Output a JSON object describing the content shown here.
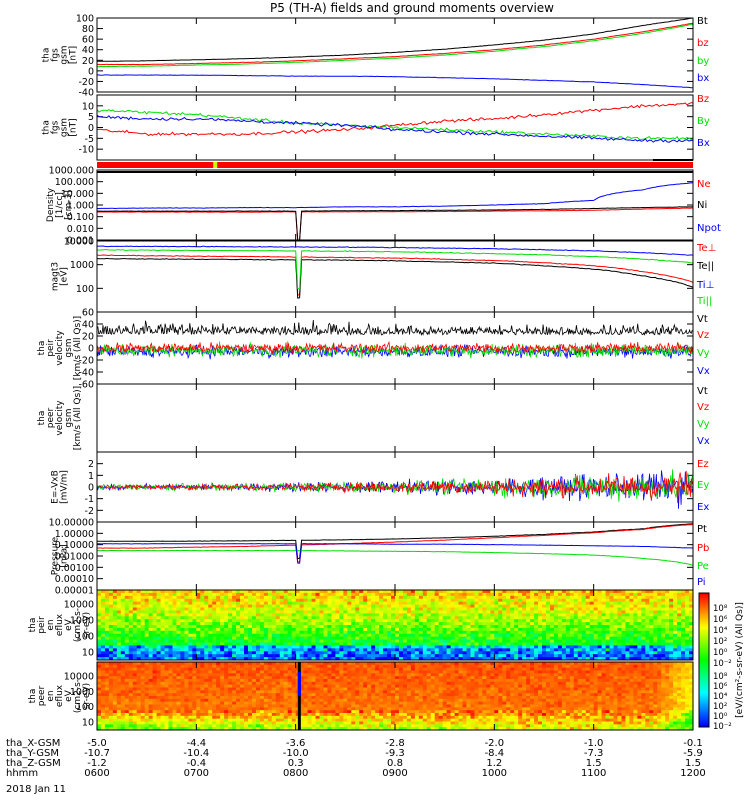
{
  "title": "P5 (TH-A) fields and ground moments overview",
  "date_label": "2018 Jan 11",
  "colors": {
    "black": "#000000",
    "red": "#ff0000",
    "green": "#00e000",
    "blue": "#0000ff",
    "quality_bar": "#ff0000",
    "quality_mark": "#c8ff00"
  },
  "bottom_axis": {
    "row_labels": [
      "tha_X-GSM",
      "tha_Y-GSM",
      "tha_Z-GSM",
      "hhmm"
    ],
    "x_gsm": [
      "-5.0",
      "-4.4",
      "-3.6",
      "-2.8",
      "-2.0",
      "-1.0",
      "-0.1"
    ],
    "y_gsm": [
      "-10.7",
      "-10.4",
      "-10.0",
      "-9.3",
      "-8.4",
      "-7.3",
      "-5.9"
    ],
    "z_gsm": [
      "-1.2",
      "-0.4",
      "0.3",
      "0.8",
      "1.2",
      "1.5",
      "1.5"
    ],
    "hhmm": [
      "0600",
      "0700",
      "0800",
      "0900",
      "1000",
      "1100",
      "1200"
    ]
  },
  "chart_data": [
    {
      "type": "line",
      "ylabel": [
        "tha",
        "fgs",
        "gsm",
        "[nT]"
      ],
      "ylim": [
        -40,
        100
      ],
      "ytick_labels": [
        "100",
        "80",
        "60",
        "40",
        "20",
        "0",
        "-20",
        "-40"
      ],
      "x": [
        "0600",
        "0630",
        "0700",
        "0730",
        "0800",
        "0830",
        "0900",
        "0930",
        "1000",
        "1030",
        "1100",
        "1130",
        "1200"
      ],
      "series": [
        {
          "name": "Bt",
          "color": "#000000",
          "values": [
            18,
            19,
            21,
            23,
            26,
            30,
            35,
            41,
            49,
            58,
            70,
            86,
            100
          ]
        },
        {
          "name": "bz",
          "color": "#ff0000",
          "values": [
            12,
            12,
            14,
            16,
            19,
            23,
            27,
            33,
            40,
            49,
            60,
            74,
            90
          ]
        },
        {
          "name": "by",
          "color": "#00e000",
          "values": [
            8,
            9,
            11,
            13,
            16,
            20,
            24,
            30,
            37,
            46,
            57,
            71,
            88
          ]
        },
        {
          "name": "bx",
          "color": "#0000ff",
          "values": [
            -8,
            -8,
            -8,
            -9,
            -10,
            -10,
            -11,
            -13,
            -15,
            -18,
            -21,
            -26,
            -32
          ]
        }
      ]
    },
    {
      "type": "line",
      "ylabel": [
        "tha",
        "fgs",
        "gsm",
        "[nT]"
      ],
      "ylim": [
        -15,
        15
      ],
      "ytick_labels": [
        "10",
        "5",
        "0",
        "-5",
        "-10"
      ],
      "x": [
        "0600",
        "0630",
        "0700",
        "0730",
        "0800",
        "0830",
        "0900",
        "0930",
        "1000",
        "1030",
        "1100",
        "1130",
        "1200"
      ],
      "series": [
        {
          "name": "Bz",
          "color": "#ff0000",
          "values": [
            -1,
            -3,
            -3,
            -3,
            -2,
            -1,
            1,
            3,
            4,
            6,
            8,
            10,
            11
          ]
        },
        {
          "name": "By",
          "color": "#00e000",
          "values": [
            8,
            7,
            6,
            4,
            2,
            1,
            0,
            -1,
            -2,
            -3,
            -4,
            -5,
            -5
          ]
        },
        {
          "name": "Bx",
          "color": "#0000ff",
          "values": [
            5,
            4,
            4,
            3,
            2,
            1,
            -1,
            -2,
            -3,
            -4,
            -5,
            -6,
            -6
          ]
        }
      ]
    },
    {
      "type": "line",
      "ylabel": [
        "Density",
        "[1/cc]",
        "[cm-3]"
      ],
      "log_scale": true,
      "ylim": [
        0.001,
        1000
      ],
      "ytick_labels": [
        "1000.000",
        "100.000",
        "10.000",
        "1.000",
        "0.100",
        "0.010",
        "0.001"
      ],
      "x": [
        "0600",
        "0630",
        "0700",
        "0730",
        "0800",
        "0830",
        "0900",
        "0930",
        "1000",
        "1030",
        "1100",
        "1130",
        "1200"
      ],
      "series": [
        {
          "name": "Ne",
          "color": "#ff0000",
          "values": [
            0.25,
            0.25,
            0.25,
            0.25,
            0.26,
            0.26,
            0.27,
            0.28,
            0.3,
            0.32,
            0.35,
            0.45,
            0.55
          ]
        },
        {
          "name": "Ni",
          "color": "#000000",
          "values": [
            0.3,
            0.3,
            0.3,
            0.3,
            0.3,
            0.32,
            0.33,
            0.35,
            0.38,
            0.42,
            0.5,
            0.6,
            0.7
          ]
        },
        {
          "name": "Npot",
          "color": "#0000ff",
          "values": [
            0.5,
            0.55,
            0.55,
            0.6,
            0.6,
            0.7,
            0.7,
            0.8,
            1.0,
            1.3,
            2.5,
            20,
            80
          ]
        }
      ]
    },
    {
      "type": "line",
      "ylabel": [
        "magt3",
        "[eV]"
      ],
      "log_scale": true,
      "ylim": [
        10,
        10000
      ],
      "ytick_labels": [
        "10000",
        "1000",
        "100"
      ],
      "x": [
        "0600",
        "0630",
        "0700",
        "0730",
        "0800",
        "0830",
        "0900",
        "0930",
        "1000",
        "1030",
        "1100",
        "1130",
        "1200"
      ],
      "series": [
        {
          "name": "Te⊥",
          "color": "#ff0000",
          "values": [
            2500,
            2400,
            2300,
            2200,
            2100,
            2000,
            1900,
            1700,
            1500,
            1200,
            900,
            500,
            180
          ]
        },
        {
          "name": "Te||",
          "color": "#000000",
          "values": [
            1800,
            1750,
            1700,
            1650,
            1600,
            1550,
            1450,
            1300,
            1150,
            900,
            650,
            330,
            110
          ]
        },
        {
          "name": "Ti⊥",
          "color": "#0000ff",
          "values": [
            6000,
            5900,
            5800,
            5700,
            5600,
            5500,
            5300,
            5000,
            4700,
            4300,
            3800,
            3200,
            2500
          ]
        },
        {
          "name": "Ti||",
          "color": "#00e000",
          "values": [
            4200,
            4100,
            4000,
            3900,
            3800,
            3700,
            3500,
            3200,
            2900,
            2600,
            2200,
            1700,
            1200
          ]
        }
      ]
    },
    {
      "type": "line",
      "ylabel": [
        "tha",
        "peir",
        "velocity",
        "gsm",
        "[km/s (All Qs)]"
      ],
      "ylim": [
        -60,
        60
      ],
      "ytick_labels": [
        "60",
        "40",
        "20",
        "0",
        "-20",
        "-40",
        "-60"
      ],
      "series": [
        {
          "name": "Vt",
          "color": "#000000"
        },
        {
          "name": "Vz",
          "color": "#ff0000"
        },
        {
          "name": "Vy",
          "color": "#00e000"
        },
        {
          "name": "Vx",
          "color": "#0000ff"
        }
      ]
    },
    {
      "type": "line",
      "ylabel": [
        "tha",
        "peer",
        "velocity",
        "gsm",
        "[km/s (All Qs)]"
      ],
      "series": [
        {
          "name": "Vt",
          "color": "#000000"
        },
        {
          "name": "Vz",
          "color": "#ff0000"
        },
        {
          "name": "Vy",
          "color": "#00e000"
        },
        {
          "name": "Vx",
          "color": "#0000ff"
        }
      ]
    },
    {
      "type": "line",
      "ylabel": [
        "E=-VxB",
        "[mV/m]"
      ],
      "ylim": [
        -3,
        3
      ],
      "ytick_labels": [
        "2",
        "1",
        "0",
        "-1",
        "-2"
      ],
      "series": [
        {
          "name": "Ez",
          "color": "#ff0000"
        },
        {
          "name": "Ey",
          "color": "#00e000"
        },
        {
          "name": "Ex",
          "color": "#0000ff"
        }
      ]
    },
    {
      "type": "line",
      "ylabel": [
        "Pressure",
        "[nPa]"
      ],
      "log_scale": true,
      "ylim": [
        1e-05,
        10
      ],
      "ytick_labels": [
        "10.00000",
        "1.00000",
        "0.10000",
        "0.01000",
        "0.00100",
        "0.00010",
        "0.00001"
      ],
      "x": [
        "0600",
        "0630",
        "0700",
        "0730",
        "0800",
        "0830",
        "0900",
        "0930",
        "1000",
        "1030",
        "1100",
        "1130",
        "1200"
      ],
      "series": [
        {
          "name": "Pt",
          "color": "#000000",
          "values": [
            0.2,
            0.2,
            0.21,
            0.22,
            0.24,
            0.27,
            0.32,
            0.4,
            0.55,
            0.8,
            1.3,
            2.5,
            7
          ]
        },
        {
          "name": "Pb",
          "color": "#ff0000",
          "values": [
            0.05,
            0.05,
            0.06,
            0.07,
            0.09,
            0.12,
            0.17,
            0.25,
            0.4,
            0.65,
            1.1,
            2.2,
            6
          ]
        },
        {
          "name": "Pe",
          "color": "#00e000",
          "values": [
            0.03,
            0.03,
            0.03,
            0.03,
            0.03,
            0.028,
            0.026,
            0.024,
            0.02,
            0.016,
            0.012,
            0.006,
            0.0015
          ]
        },
        {
          "name": "Pi",
          "color": "#0000ff",
          "values": [
            0.12,
            0.12,
            0.12,
            0.12,
            0.12,
            0.12,
            0.11,
            0.11,
            0.1,
            0.09,
            0.08,
            0.07,
            0.05
          ]
        }
      ]
    },
    {
      "type": "heatmap",
      "ylabel": [
        "tha",
        "peir",
        "en",
        "eflux",
        "eV",
        "(cm2-s-",
        "sr-eV)"
      ],
      "log_scale": true,
      "ytick_labels": [
        "10000",
        "1000",
        "100",
        "10"
      ]
    },
    {
      "type": "heatmap",
      "ylabel": [
        "tha",
        "peer",
        "en",
        "eflux",
        "eV",
        "(cm2-s-",
        "sr-eV)"
      ],
      "log_scale": true,
      "ytick_labels": [
        "10000",
        "1000",
        "100",
        "10"
      ]
    }
  ],
  "colorbar": {
    "label": "[eV/(cm²-s-sr-eV) (All Qs)]",
    "ticks_upper": [
      "10⁸",
      "10⁶",
      "10⁴",
      "10²",
      "10⁰",
      "10⁻²"
    ],
    "ticks_lower": [
      "10⁸",
      "10⁶",
      "10⁴",
      "10²",
      "10⁰",
      "10⁻²"
    ]
  }
}
